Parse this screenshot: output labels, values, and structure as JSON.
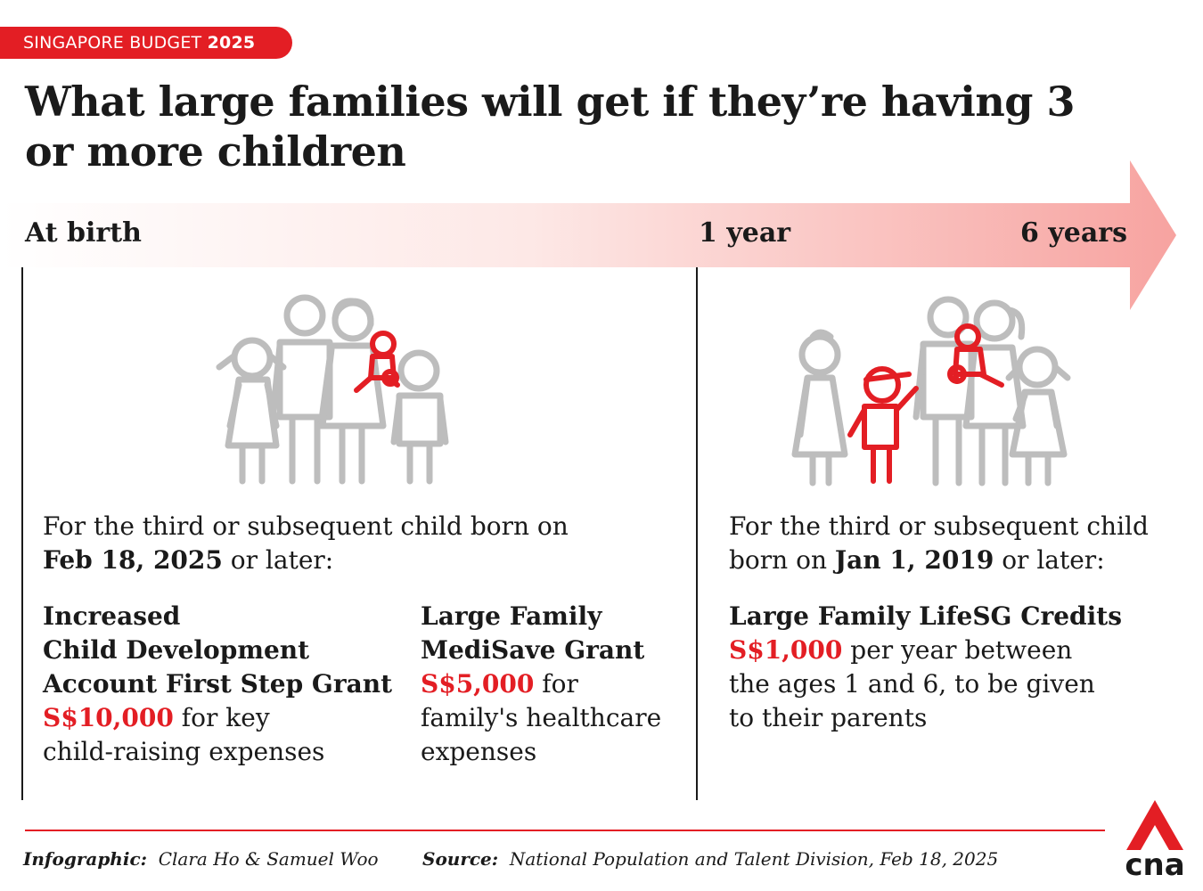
{
  "tag": {
    "prefix": "SINGAPORE BUDGET",
    "year": "2025"
  },
  "title": "What large families will get if they’re having 3 or more children",
  "timeline": {
    "start": "At birth",
    "mid": "1 year",
    "end": "6 years"
  },
  "left": {
    "intro_text": "For the third or subsequent child born on",
    "intro_date": "Feb 18, 2025",
    "intro_suffix": " or later:",
    "benefit1": {
      "heading_1": "Increased",
      "heading_2": "Child Development",
      "heading_3": "Account First Step Grant",
      "amount": "S$10,000",
      "desc_1": " for key",
      "desc_2": "child-raising expenses"
    },
    "benefit2": {
      "heading_1": "Large Family",
      "heading_2": "MediSave Grant",
      "amount": "S$5,000",
      "desc_1": " for",
      "desc_2": "family's healthcare",
      "desc_3": "expenses"
    }
  },
  "right": {
    "intro_text": "For the third or subsequent child",
    "intro_prefix": "born on ",
    "intro_date": "Jan 1, 2019",
    "intro_suffix": " or later:",
    "benefit": {
      "heading": "Large Family LifeSG Credits",
      "amount": "S$1,000",
      "desc_1": " per year between",
      "desc_2": "the ages 1 and 6, to be given",
      "desc_3": "to their parents"
    }
  },
  "footer": {
    "infographic_label": "Infographic:",
    "infographic_value": "Clara Ho & Samuel Woo",
    "source_label": "Source:",
    "source_value": "National Population and Talent Division, Feb 18, 2025"
  },
  "logo_text": "cna",
  "icons": {
    "family_left": "family-of-five-icon",
    "family_right": "family-of-five-with-hug-icon",
    "logo": "cna-logo-icon"
  },
  "colors": {
    "accent": "#e31e24",
    "icon_grey": "#bdbdbd",
    "arrow": "#f7a9a4"
  }
}
